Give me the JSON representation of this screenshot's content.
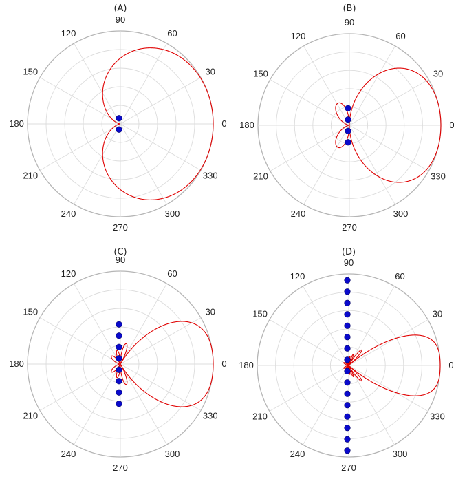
{
  "panels": [
    {
      "label": "(A)",
      "elements": 2
    },
    {
      "label": "(B)",
      "elements": 4
    },
    {
      "label": "(C)",
      "elements": 8
    },
    {
      "label": "(D)",
      "elements": 16
    }
  ],
  "angle_ticks": [
    "0",
    "30",
    "60",
    "90",
    "120",
    "150",
    "180",
    "210",
    "240",
    "270",
    "300",
    "330"
  ],
  "colors": {
    "grid": "#dcdcdc",
    "outer_ring": "#b5b5b5",
    "pattern": "#e00000",
    "element": "#0a0acc"
  },
  "chart_data": [
    {
      "type": "polar-line",
      "title": "(A)",
      "theta_ticks_deg": [
        0,
        30,
        60,
        90,
        120,
        150,
        180,
        210,
        240,
        270,
        300,
        330
      ],
      "grid": true,
      "series": [
        {
          "element_spacing_wavelengths": 0.25,
          "num_elements": 2,
          "steering": "endfire_0deg",
          "peak_normalized": 1.0
        }
      ]
    },
    {
      "type": "polar-line",
      "title": "(B)",
      "theta_ticks_deg": [
        0,
        30,
        60,
        90,
        120,
        150,
        180,
        210,
        240,
        270,
        300,
        330
      ],
      "grid": true,
      "series": [
        {
          "element_spacing_wavelengths": 0.25,
          "num_elements": 4,
          "steering": "endfire_0deg",
          "peak_normalized": 1.0
        }
      ]
    },
    {
      "type": "polar-line",
      "title": "(C)",
      "theta_ticks_deg": [
        0,
        30,
        60,
        90,
        120,
        150,
        180,
        210,
        240,
        270,
        300,
        330
      ],
      "grid": true,
      "series": [
        {
          "element_spacing_wavelengths": 0.25,
          "num_elements": 8,
          "steering": "endfire_0deg",
          "peak_normalized": 1.0
        }
      ]
    },
    {
      "type": "polar-line",
      "title": "(D)",
      "theta_ticks_deg": [
        0,
        30,
        60,
        90,
        120,
        150,
        180,
        210,
        240,
        270,
        300,
        330
      ],
      "grid": true,
      "series": [
        {
          "element_spacing_wavelengths": 0.25,
          "num_elements": 16,
          "steering": "endfire_0deg",
          "peak_normalized": 1.0
        }
      ]
    }
  ]
}
